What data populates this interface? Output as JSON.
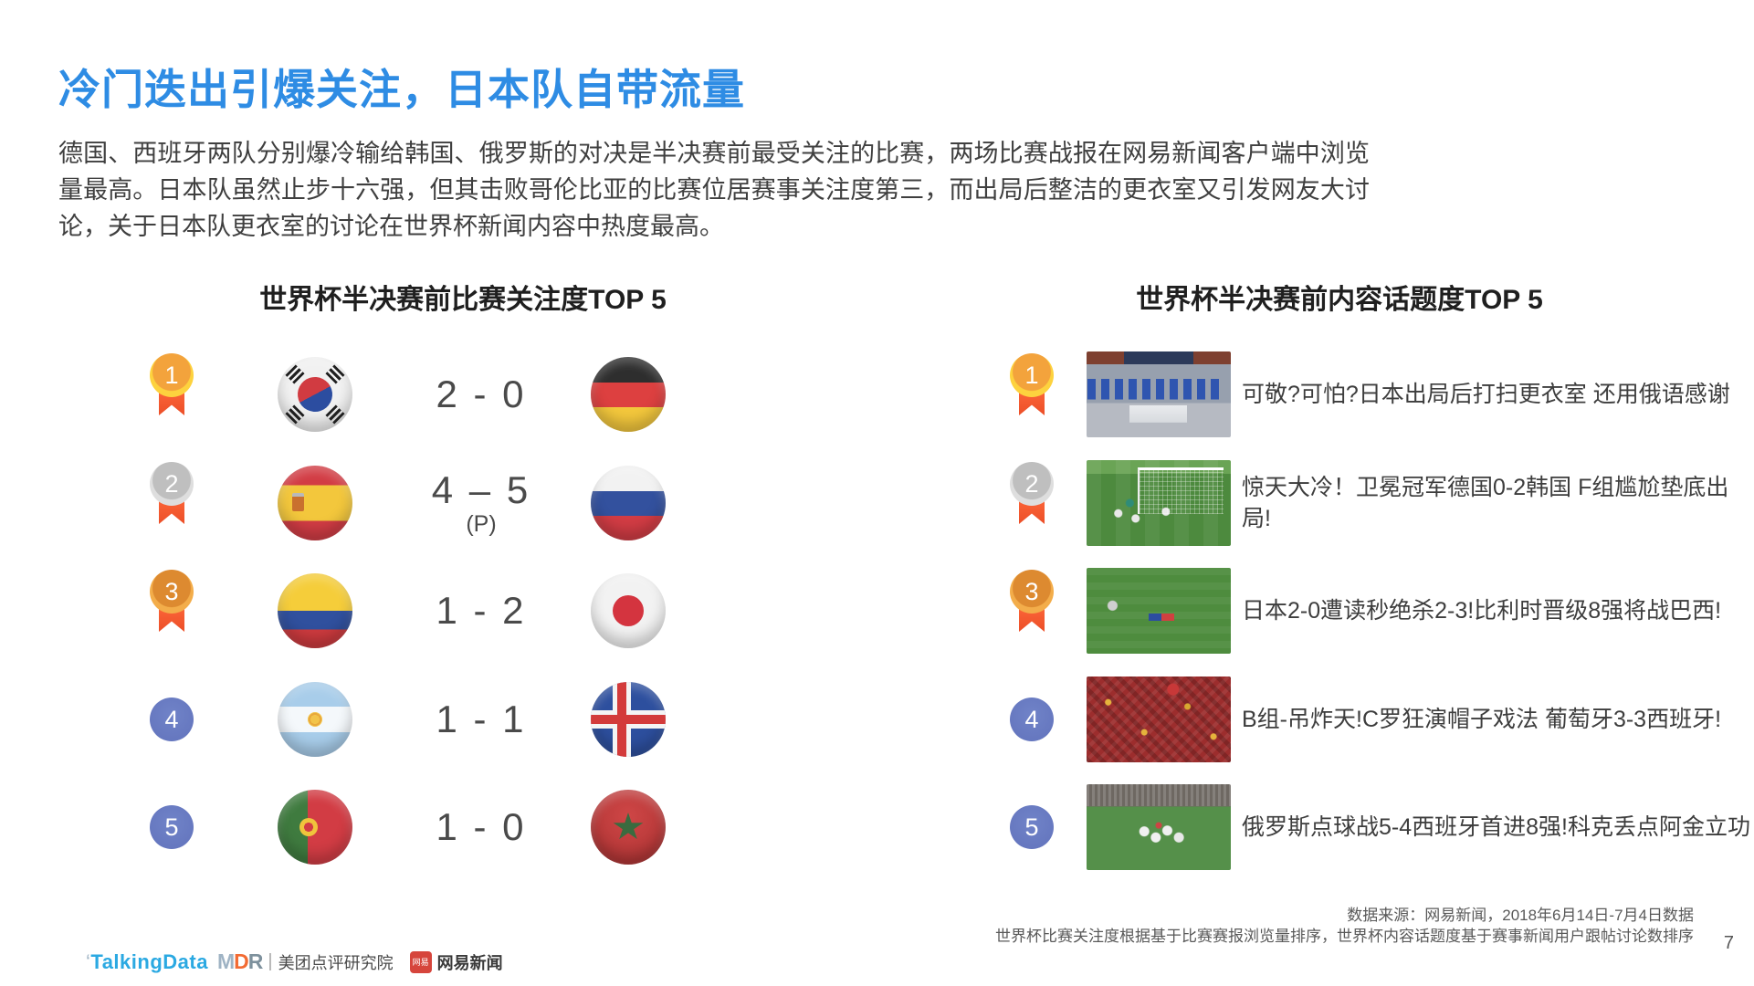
{
  "page": {
    "title": "冷门迭出引爆关注，日本队自带流量",
    "paragraph": "德国、西班牙两队分别爆冷输给韩国、俄罗斯的对决是半决赛前最受关注的比赛，两场比赛战报在网易新闻客户端中浏览量最高。日本队虽然止步十六强，但其击败哥伦比亚的比赛位居赛事关注度第三，而出局后整洁的更衣室又引发网友大讨论，关于日本队更衣室的讨论在世界杯新闻内容中热度最高。",
    "page_number": "7"
  },
  "left_panel": {
    "title": "世界杯半决赛前比赛关注度TOP 5",
    "rows": [
      {
        "rank": "1",
        "medal": "gold",
        "team_a": "South Korea",
        "score": "2 - 0",
        "score_note": "",
        "team_b": "Germany"
      },
      {
        "rank": "2",
        "medal": "silver",
        "team_a": "Spain",
        "score": "4 – 5",
        "score_note": "(P)",
        "team_b": "Russia"
      },
      {
        "rank": "3",
        "medal": "bronze",
        "team_a": "Colombia",
        "score": "1 - 2",
        "score_note": "",
        "team_b": "Japan"
      },
      {
        "rank": "4",
        "medal": "plain",
        "team_a": "Argentina",
        "score": "1 - 1",
        "score_note": "",
        "team_b": "Iceland"
      },
      {
        "rank": "5",
        "medal": "plain",
        "team_a": "Portugal",
        "score": "1 - 0",
        "score_note": "",
        "team_b": "Morocco"
      }
    ]
  },
  "right_panel": {
    "title": "世界杯半决赛前内容话题度TOP 5",
    "rows": [
      {
        "rank": "1",
        "medal": "gold",
        "image": "japan-locker-room",
        "headline": "可敬?可怕?日本出局后打扫更衣室 还用俄语感谢"
      },
      {
        "rank": "2",
        "medal": "silver",
        "image": "germany-korea-goal",
        "headline": "惊天大冷！卫冕冠军德国0-2韩国 F组尴尬垫底出局!"
      },
      {
        "rank": "3",
        "medal": "bronze",
        "image": "japan-belgium-pitch",
        "headline": "日本2-0遭读秒绝杀2-3!比利时晋级8强将战巴西!"
      },
      {
        "rank": "4",
        "medal": "plain",
        "image": "portugal-spain-fans",
        "headline": "B组-吊炸天!C罗狂演帽子戏法 葡萄牙3-3西班牙!"
      },
      {
        "rank": "5",
        "medal": "plain",
        "image": "russia-spain-celebration",
        "headline": "俄罗斯点球战5-4西班牙首进8强!科克丢点阿金立功"
      }
    ]
  },
  "footer": {
    "source_line1": "数据来源：网易新闻，2018年6月14日-7月4日数据",
    "source_line2": "世界杯比赛关注度根据基于比赛赛报浏览量排序，世界杯内容话题度基于赛事新闻用户跟帖讨论数排序",
    "logos": {
      "talkingdata_tick": "‘",
      "talkingdata": "TalkingData",
      "mdr_m": "M",
      "mdr_d": "D",
      "mdr_r": "R",
      "separator": "|",
      "meituan": "美团点评研究院",
      "netease_badge": "网易",
      "netease": "网易新闻"
    }
  },
  "colors": {
    "title_blue": "#2E8CE4",
    "rank_plain_blue": "#6478C0",
    "ribbon_orange": "#EC4F28",
    "medal_gold": "#FDD23E",
    "medal_silver": "#DEDEDE",
    "medal_bronze": "#F3AD4A"
  }
}
